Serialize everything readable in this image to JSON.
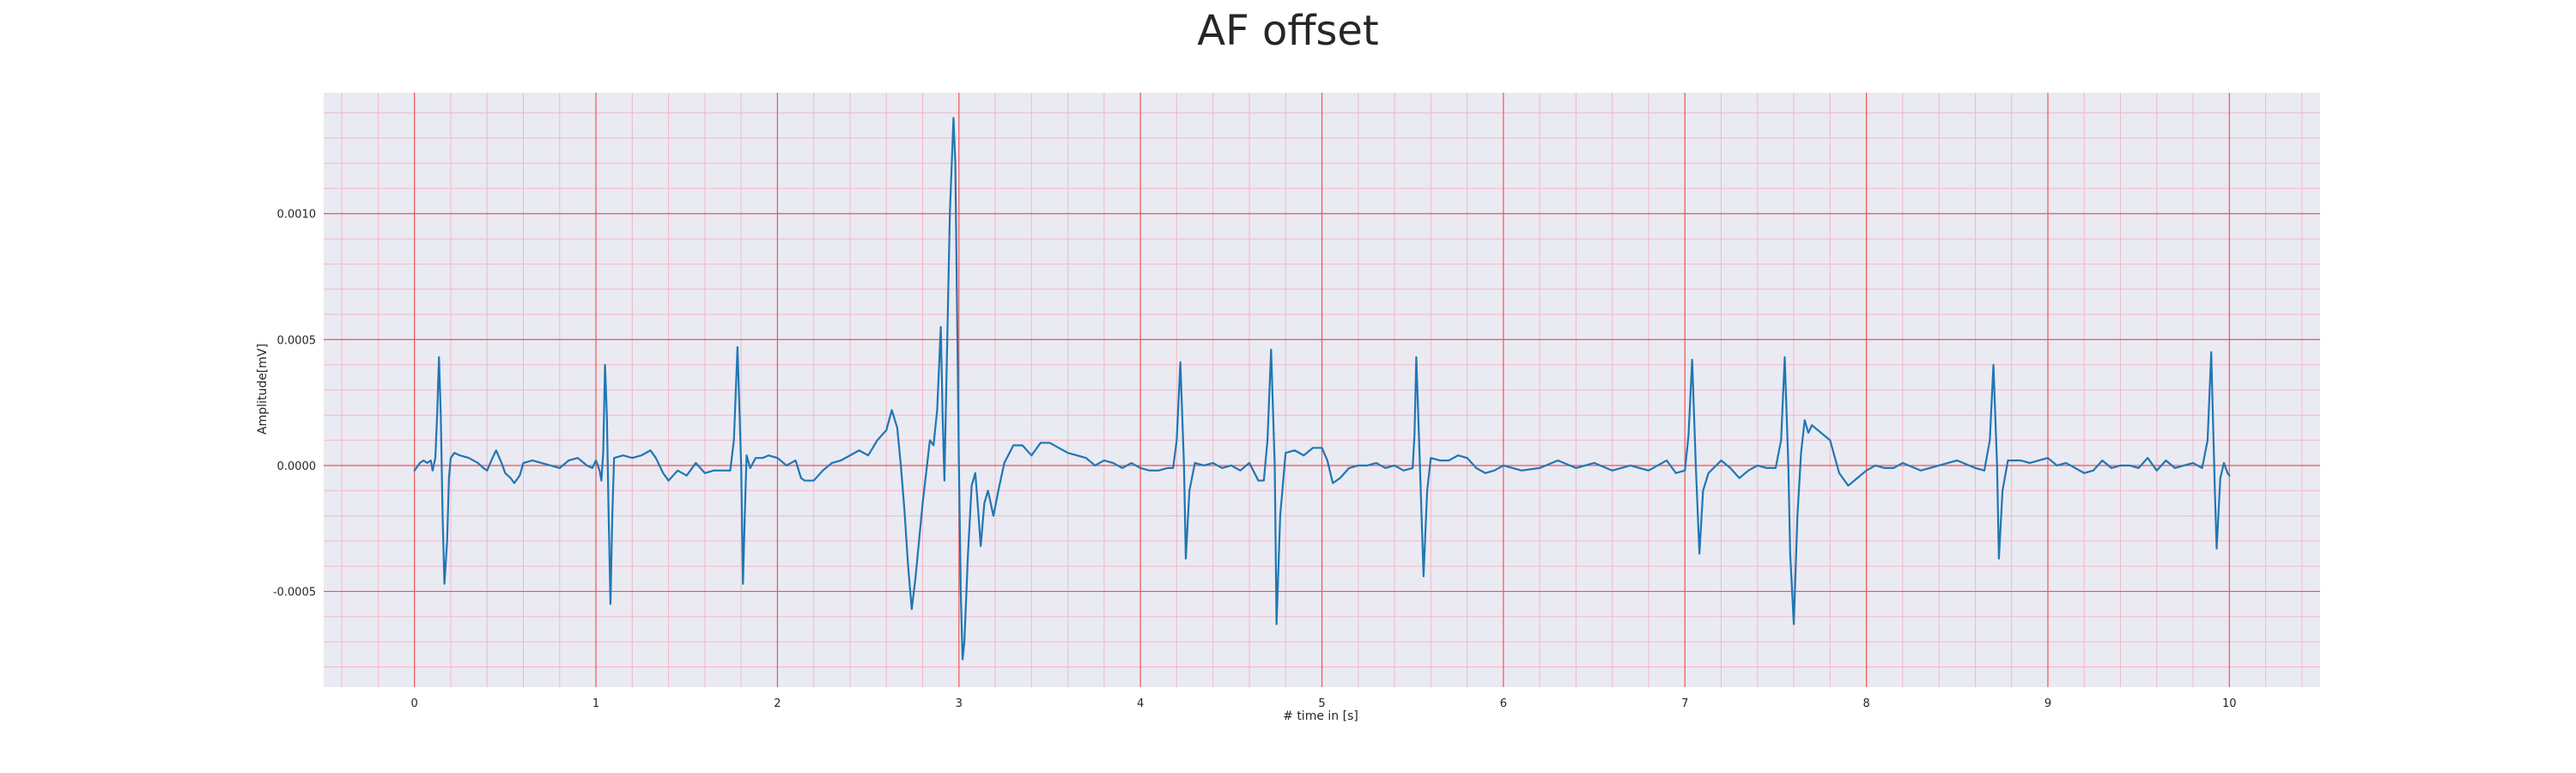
{
  "chart_data": {
    "type": "line",
    "title": "AF offset",
    "xlabel": "# time in [s]",
    "ylabel": "Amplitude[mV]",
    "xlim": [
      -0.5,
      10.5
    ],
    "ylim": [
      -0.00088,
      0.00148
    ],
    "xticks": [
      0,
      1,
      2,
      3,
      4,
      5,
      6,
      7,
      8,
      9,
      10
    ],
    "xtick_labels": [
      "0",
      "1",
      "2",
      "3",
      "4",
      "5",
      "6",
      "7",
      "8",
      "9",
      "10"
    ],
    "yticks": [
      -0.0005,
      0.0,
      0.0005,
      0.001
    ],
    "ytick_labels": [
      "-0.0005",
      "0.0000",
      "0.0005",
      "0.0010"
    ],
    "grid": true,
    "minor_grid": true,
    "background_color": "#eaeaf2",
    "major_grid_color": "#ee5555",
    "minor_grid_color": "#f4b7c6",
    "series": [
      {
        "color": "#1f77b4",
        "points": [
          [
            0.0,
            -2e-05
          ],
          [
            0.03,
            1e-05
          ],
          [
            0.05,
            2e-05
          ],
          [
            0.07,
            1e-05
          ],
          [
            0.09,
            2e-05
          ],
          [
            0.1,
            -2e-05
          ],
          [
            0.115,
            3e-05
          ],
          [
            0.125,
            0.0002
          ],
          [
            0.135,
            0.00043
          ],
          [
            0.145,
            0.0002
          ],
          [
            0.155,
            -0.0002
          ],
          [
            0.165,
            -0.00047
          ],
          [
            0.18,
            -0.0003
          ],
          [
            0.19,
            -5e-05
          ],
          [
            0.2,
            3e-05
          ],
          [
            0.22,
            5e-05
          ],
          [
            0.25,
            4e-05
          ],
          [
            0.3,
            3e-05
          ],
          [
            0.35,
            1e-05
          ],
          [
            0.38,
            -1e-05
          ],
          [
            0.4,
            -2e-05
          ],
          [
            0.43,
            3e-05
          ],
          [
            0.45,
            6e-05
          ],
          [
            0.48,
            1e-05
          ],
          [
            0.5,
            -3e-05
          ],
          [
            0.53,
            -5e-05
          ],
          [
            0.55,
            -7e-05
          ],
          [
            0.58,
            -4e-05
          ],
          [
            0.6,
            1e-05
          ],
          [
            0.65,
            2e-05
          ],
          [
            0.7,
            1e-05
          ],
          [
            0.75,
            0.0
          ],
          [
            0.8,
            -1e-05
          ],
          [
            0.85,
            2e-05
          ],
          [
            0.9,
            3e-05
          ],
          [
            0.95,
            0.0
          ],
          [
            0.98,
            -1e-05
          ],
          [
            1.0,
            2e-05
          ],
          [
            1.02,
            -2e-05
          ],
          [
            1.03,
            -6e-05
          ],
          [
            1.04,
            5e-05
          ],
          [
            1.05,
            0.0004
          ],
          [
            1.06,
            0.0002
          ],
          [
            1.07,
            -0.0002
          ],
          [
            1.08,
            -0.00055
          ],
          [
            1.09,
            -0.0002
          ],
          [
            1.1,
            3e-05
          ],
          [
            1.15,
            4e-05
          ],
          [
            1.2,
            3e-05
          ],
          [
            1.25,
            4e-05
          ],
          [
            1.3,
            6e-05
          ],
          [
            1.33,
            3e-05
          ],
          [
            1.37,
            -3e-05
          ],
          [
            1.4,
            -6e-05
          ],
          [
            1.45,
            -2e-05
          ],
          [
            1.5,
            -4e-05
          ],
          [
            1.55,
            1e-05
          ],
          [
            1.6,
            -3e-05
          ],
          [
            1.65,
            -2e-05
          ],
          [
            1.7,
            -2e-05
          ],
          [
            1.74,
            -2e-05
          ],
          [
            1.76,
            0.0001
          ],
          [
            1.78,
            0.00047
          ],
          [
            1.8,
            0.0
          ],
          [
            1.81,
            -0.00047
          ],
          [
            1.82,
            -0.0002
          ],
          [
            1.83,
            4e-05
          ],
          [
            1.85,
            -1e-05
          ],
          [
            1.88,
            3e-05
          ],
          [
            1.92,
            3e-05
          ],
          [
            1.95,
            4e-05
          ],
          [
            2.0,
            3e-05
          ],
          [
            2.05,
            0.0
          ],
          [
            2.1,
            2e-05
          ],
          [
            2.13,
            -5e-05
          ],
          [
            2.15,
            -6e-05
          ],
          [
            2.2,
            -6e-05
          ],
          [
            2.25,
            -2e-05
          ],
          [
            2.3,
            1e-05
          ],
          [
            2.35,
            2e-05
          ],
          [
            2.4,
            4e-05
          ],
          [
            2.45,
            6e-05
          ],
          [
            2.5,
            4e-05
          ],
          [
            2.55,
            0.0001
          ],
          [
            2.6,
            0.00014
          ],
          [
            2.63,
            0.00022
          ],
          [
            2.66,
            0.00015
          ],
          [
            2.68,
            0.0
          ],
          [
            2.7,
            -0.00018
          ],
          [
            2.72,
            -0.0004
          ],
          [
            2.74,
            -0.00057
          ],
          [
            2.76,
            -0.00045
          ],
          [
            2.8,
            -0.00015
          ],
          [
            2.84,
            0.0001
          ],
          [
            2.86,
            8e-05
          ],
          [
            2.88,
            0.00022
          ],
          [
            2.9,
            0.00055
          ],
          [
            2.91,
            0.0002
          ],
          [
            2.92,
            -6e-05
          ],
          [
            2.93,
            0.0003
          ],
          [
            2.95,
            0.001
          ],
          [
            2.97,
            0.00138
          ],
          [
            2.98,
            0.0012
          ],
          [
            2.99,
            0.0006
          ],
          [
            3.0,
            0.0
          ],
          [
            3.01,
            -0.0005
          ],
          [
            3.02,
            -0.00077
          ],
          [
            3.03,
            -0.0007
          ],
          [
            3.05,
            -0.00035
          ],
          [
            3.07,
            -8e-05
          ],
          [
            3.09,
            -3e-05
          ],
          [
            3.1,
            -0.00012
          ],
          [
            3.12,
            -0.00032
          ],
          [
            3.14,
            -0.00015
          ],
          [
            3.16,
            -0.0001
          ],
          [
            3.19,
            -0.0002
          ],
          [
            3.22,
            -9e-05
          ],
          [
            3.25,
            1e-05
          ],
          [
            3.3,
            8e-05
          ],
          [
            3.35,
            8e-05
          ],
          [
            3.4,
            4e-05
          ],
          [
            3.45,
            9e-05
          ],
          [
            3.5,
            9e-05
          ],
          [
            3.55,
            7e-05
          ],
          [
            3.6,
            5e-05
          ],
          [
            3.65,
            4e-05
          ],
          [
            3.7,
            3e-05
          ],
          [
            3.75,
            0.0
          ],
          [
            3.8,
            2e-05
          ],
          [
            3.85,
            1e-05
          ],
          [
            3.9,
            -1e-05
          ],
          [
            3.95,
            1e-05
          ],
          [
            4.0,
            -1e-05
          ],
          [
            4.05,
            -2e-05
          ],
          [
            4.1,
            -2e-05
          ],
          [
            4.15,
            -1e-05
          ],
          [
            4.18,
            -1e-05
          ],
          [
            4.2,
            0.0001
          ],
          [
            4.22,
            0.00041
          ],
          [
            4.24,
            0.0
          ],
          [
            4.25,
            -0.00037
          ],
          [
            4.27,
            -0.0001
          ],
          [
            4.3,
            1e-05
          ],
          [
            4.35,
            0.0
          ],
          [
            4.4,
            1e-05
          ],
          [
            4.45,
            -1e-05
          ],
          [
            4.5,
            0.0
          ],
          [
            4.55,
            -2e-05
          ],
          [
            4.6,
            1e-05
          ],
          [
            4.65,
            -6e-05
          ],
          [
            4.68,
            -6e-05
          ],
          [
            4.7,
            0.0001
          ],
          [
            4.72,
            0.00046
          ],
          [
            4.74,
            0.0
          ],
          [
            4.75,
            -0.00063
          ],
          [
            4.77,
            -0.0002
          ],
          [
            4.8,
            5e-05
          ],
          [
            4.85,
            6e-05
          ],
          [
            4.9,
            4e-05
          ],
          [
            4.95,
            7e-05
          ],
          [
            5.0,
            7e-05
          ],
          [
            5.03,
            2e-05
          ],
          [
            5.06,
            -7e-05
          ],
          [
            5.1,
            -5e-05
          ],
          [
            5.15,
            -1e-05
          ],
          [
            5.2,
            0.0
          ],
          [
            5.25,
            0.0
          ],
          [
            5.3,
            1e-05
          ],
          [
            5.35,
            -1e-05
          ],
          [
            5.4,
            0.0
          ],
          [
            5.45,
            -2e-05
          ],
          [
            5.5,
            -1e-05
          ],
          [
            5.51,
            0.00012
          ],
          [
            5.52,
            0.00043
          ],
          [
            5.54,
            0.0
          ],
          [
            5.56,
            -0.00044
          ],
          [
            5.58,
            -0.0001
          ],
          [
            5.6,
            3e-05
          ],
          [
            5.65,
            2e-05
          ],
          [
            5.7,
            2e-05
          ],
          [
            5.75,
            4e-05
          ],
          [
            5.8,
            3e-05
          ],
          [
            5.85,
            -1e-05
          ],
          [
            5.9,
            -3e-05
          ],
          [
            5.95,
            -2e-05
          ],
          [
            6.0,
            0.0
          ],
          [
            6.1,
            -2e-05
          ],
          [
            6.2,
            -1e-05
          ],
          [
            6.3,
            2e-05
          ],
          [
            6.4,
            -1e-05
          ],
          [
            6.5,
            1e-05
          ],
          [
            6.6,
            -2e-05
          ],
          [
            6.7,
            0.0
          ],
          [
            6.8,
            -2e-05
          ],
          [
            6.9,
            2e-05
          ],
          [
            6.95,
            -3e-05
          ],
          [
            7.0,
            -2e-05
          ],
          [
            7.02,
            0.00012
          ],
          [
            7.04,
            0.00042
          ],
          [
            7.06,
            0.0
          ],
          [
            7.08,
            -0.00035
          ],
          [
            7.1,
            -0.0001
          ],
          [
            7.13,
            -3e-05
          ],
          [
            7.2,
            2e-05
          ],
          [
            7.25,
            -1e-05
          ],
          [
            7.3,
            -5e-05
          ],
          [
            7.35,
            -2e-05
          ],
          [
            7.4,
            0.0
          ],
          [
            7.45,
            -1e-05
          ],
          [
            7.5,
            -1e-05
          ],
          [
            7.53,
            0.0001
          ],
          [
            7.55,
            0.00043
          ],
          [
            7.57,
            0.0
          ],
          [
            7.58,
            -0.00035
          ],
          [
            7.6,
            -0.00063
          ],
          [
            7.62,
            -0.0002
          ],
          [
            7.64,
            5e-05
          ],
          [
            7.66,
            0.00018
          ],
          [
            7.68,
            0.00013
          ],
          [
            7.7,
            0.00016
          ],
          [
            7.75,
            0.00013
          ],
          [
            7.8,
            0.0001
          ],
          [
            7.85,
            -3e-05
          ],
          [
            7.9,
            -8e-05
          ],
          [
            7.95,
            -5e-05
          ],
          [
            8.0,
            -2e-05
          ],
          [
            8.05,
            0.0
          ],
          [
            8.1,
            -1e-05
          ],
          [
            8.15,
            -1e-05
          ],
          [
            8.2,
            1e-05
          ],
          [
            8.3,
            -2e-05
          ],
          [
            8.4,
            0.0
          ],
          [
            8.5,
            2e-05
          ],
          [
            8.6,
            -1e-05
          ],
          [
            8.65,
            -2e-05
          ],
          [
            8.68,
            0.0001
          ],
          [
            8.7,
            0.0004
          ],
          [
            8.72,
            0.0
          ],
          [
            8.73,
            -0.00037
          ],
          [
            8.75,
            -0.0001
          ],
          [
            8.78,
            2e-05
          ],
          [
            8.85,
            2e-05
          ],
          [
            8.9,
            1e-05
          ],
          [
            8.95,
            2e-05
          ],
          [
            9.0,
            3e-05
          ],
          [
            9.05,
            0.0
          ],
          [
            9.1,
            1e-05
          ],
          [
            9.15,
            -1e-05
          ],
          [
            9.2,
            -3e-05
          ],
          [
            9.25,
            -2e-05
          ],
          [
            9.3,
            2e-05
          ],
          [
            9.35,
            -1e-05
          ],
          [
            9.4,
            0.0
          ],
          [
            9.45,
            0.0
          ],
          [
            9.5,
            -1e-05
          ],
          [
            9.55,
            3e-05
          ],
          [
            9.6,
            -2e-05
          ],
          [
            9.65,
            2e-05
          ],
          [
            9.7,
            -1e-05
          ],
          [
            9.75,
            0.0
          ],
          [
            9.8,
            1e-05
          ],
          [
            9.85,
            -1e-05
          ],
          [
            9.88,
            0.0001
          ],
          [
            9.9,
            0.00045
          ],
          [
            9.92,
            -0.0001
          ],
          [
            9.93,
            -0.00033
          ],
          [
            9.95,
            -5e-05
          ],
          [
            9.97,
            1e-05
          ],
          [
            9.99,
            -3e-05
          ],
          [
            10.0,
            -4e-05
          ]
        ]
      }
    ]
  }
}
